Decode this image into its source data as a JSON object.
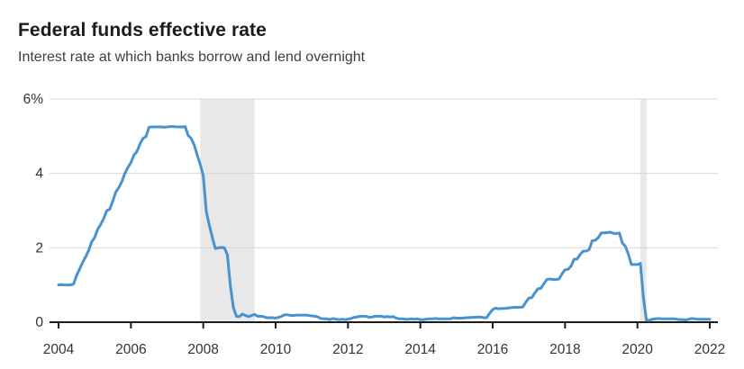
{
  "header": {
    "title": "Federal funds effective rate",
    "subtitle": "Interest rate at which banks borrow and lend overnight"
  },
  "chart_data": {
    "type": "line",
    "title": "Federal funds effective rate",
    "subtitle": "Interest rate at which banks borrow and lend overnight",
    "unit": "%",
    "frequency": "monthly",
    "x_start_year": 2004,
    "x_start_month": 1,
    "series": [
      {
        "name": "Federal funds effective rate",
        "values": [
          1.0,
          1.01,
          1.0,
          1.0,
          1.0,
          1.03,
          1.26,
          1.43,
          1.61,
          1.76,
          1.93,
          2.16,
          2.28,
          2.5,
          2.63,
          2.79,
          3.0,
          3.04,
          3.26,
          3.5,
          3.62,
          3.78,
          4.0,
          4.16,
          4.29,
          4.49,
          4.59,
          4.79,
          4.94,
          4.99,
          5.24,
          5.25,
          5.25,
          5.25,
          5.25,
          5.24,
          5.25,
          5.26,
          5.26,
          5.25,
          5.25,
          5.25,
          5.26,
          5.02,
          4.94,
          4.76,
          4.49,
          4.24,
          3.94,
          2.98,
          2.61,
          2.28,
          1.98,
          2.0,
          2.01,
          2.0,
          1.81,
          0.97,
          0.39,
          0.16,
          0.15,
          0.22,
          0.18,
          0.15,
          0.18,
          0.21,
          0.16,
          0.16,
          0.15,
          0.12,
          0.12,
          0.12,
          0.11,
          0.13,
          0.16,
          0.2,
          0.2,
          0.18,
          0.18,
          0.19,
          0.19,
          0.19,
          0.19,
          0.18,
          0.17,
          0.16,
          0.14,
          0.1,
          0.09,
          0.09,
          0.07,
          0.1,
          0.08,
          0.07,
          0.08,
          0.07,
          0.08,
          0.1,
          0.13,
          0.14,
          0.16,
          0.16,
          0.16,
          0.13,
          0.14,
          0.16,
          0.16,
          0.16,
          0.14,
          0.15,
          0.14,
          0.15,
          0.11,
          0.09,
          0.09,
          0.08,
          0.08,
          0.09,
          0.08,
          0.09,
          0.07,
          0.07,
          0.08,
          0.09,
          0.09,
          0.1,
          0.09,
          0.09,
          0.09,
          0.09,
          0.09,
          0.12,
          0.11,
          0.11,
          0.11,
          0.12,
          0.12,
          0.13,
          0.13,
          0.14,
          0.14,
          0.12,
          0.12,
          0.24,
          0.34,
          0.38,
          0.36,
          0.37,
          0.37,
          0.38,
          0.39,
          0.4,
          0.4,
          0.4,
          0.41,
          0.54,
          0.65,
          0.66,
          0.79,
          0.9,
          0.91,
          1.04,
          1.15,
          1.16,
          1.15,
          1.15,
          1.16,
          1.3,
          1.41,
          1.42,
          1.51,
          1.69,
          1.7,
          1.82,
          1.91,
          1.91,
          1.95,
          2.19,
          2.2,
          2.27,
          2.4,
          2.4,
          2.41,
          2.42,
          2.39,
          2.38,
          2.4,
          2.13,
          2.04,
          1.83,
          1.55,
          1.55,
          1.55,
          1.58,
          0.65,
          0.05,
          0.05,
          0.08,
          0.09,
          0.1,
          0.09,
          0.09,
          0.09,
          0.09,
          0.09,
          0.08,
          0.07,
          0.07,
          0.06,
          0.08,
          0.1,
          0.09,
          0.08,
          0.08,
          0.08,
          0.08,
          0.08
        ]
      }
    ],
    "y_ticks": [
      {
        "value": 0,
        "label": "0"
      },
      {
        "value": 2,
        "label": "2"
      },
      {
        "value": 4,
        "label": "4"
      },
      {
        "value": 6,
        "label": "6%"
      }
    ],
    "x_ticks": [
      2004,
      2006,
      2008,
      2010,
      2012,
      2014,
      2016,
      2018,
      2020,
      2022
    ],
    "ylim": [
      0,
      6
    ],
    "xlim": [
      2003.75,
      2022.25
    ],
    "grid": "horizontal",
    "legend": "none",
    "recession_bands": [
      {
        "from": 2007.917,
        "to": 2009.417
      },
      {
        "from": 2020.083,
        "to": 2020.25
      }
    ],
    "colors": {
      "line": "#4792cf",
      "grid": "#d8d8d8",
      "axis": "#1c1c1c",
      "band": "#e8e8e8",
      "title": "#1c1c1c",
      "subtitle": "#3e3e3e",
      "tick_label": "#333333"
    }
  }
}
